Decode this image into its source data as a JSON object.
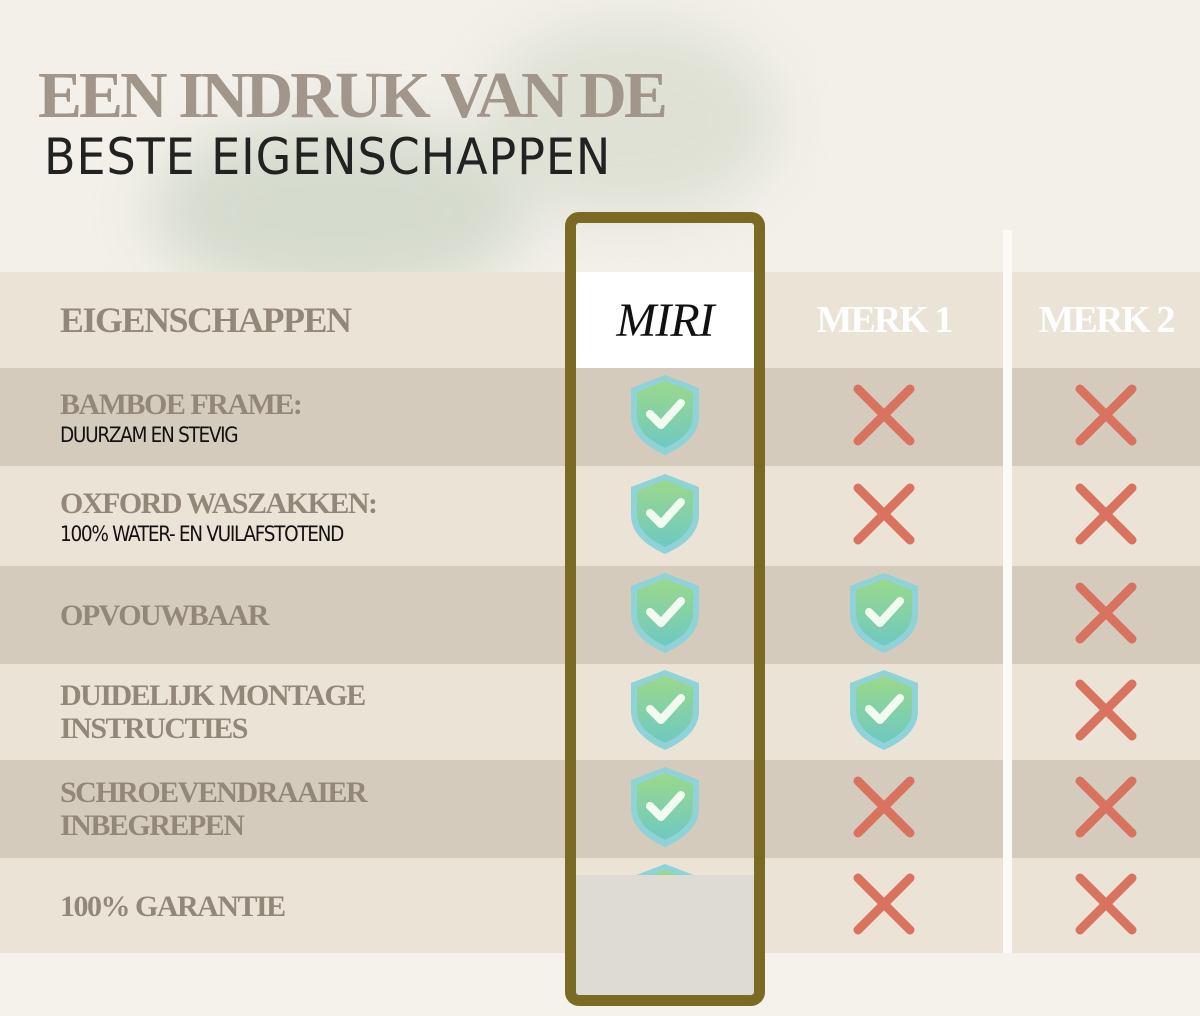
{
  "title": {
    "line1": "EEN INDRUK VAN DE",
    "line2": "BESTE EIGENSCHAPPEN"
  },
  "header": {
    "label": "EIGENSCHAPPEN",
    "brands": [
      "MIRI",
      "MERK 1",
      "MERK 2"
    ]
  },
  "rows": [
    {
      "label": "BAMBOE FRAME:",
      "sub": "DUURZAM EN STEVIG",
      "miri": "check",
      "merk1": "cross",
      "merk2": "cross"
    },
    {
      "label": "OXFORD WASZAKKEN:",
      "sub": "100% WATER- EN VUILAFSTOTEND",
      "miri": "check",
      "merk1": "cross",
      "merk2": "cross"
    },
    {
      "label": "OPVOUWBAAR",
      "sub": "",
      "miri": "check",
      "merk1": "check",
      "merk2": "cross"
    },
    {
      "label": "DUIDELIJK MONTAGE INSTRUCTIES",
      "sub": "",
      "miri": "check",
      "merk1": "check",
      "merk2": "cross"
    },
    {
      "label": "SCHROEVENDRAAIER INBEGREPEN",
      "sub": "",
      "miri": "check",
      "merk1": "cross",
      "merk2": "cross"
    },
    {
      "label": "100% GARANTIE",
      "sub": "",
      "miri": "check",
      "merk1": "cross",
      "merk2": "cross"
    }
  ],
  "colors": {
    "frame": "#7b6a24",
    "check": "#8fd08a",
    "cross": "#d9735f",
    "title": "#a1968a"
  },
  "icons": {
    "check": "shield-check-icon",
    "cross": "cross-icon"
  }
}
